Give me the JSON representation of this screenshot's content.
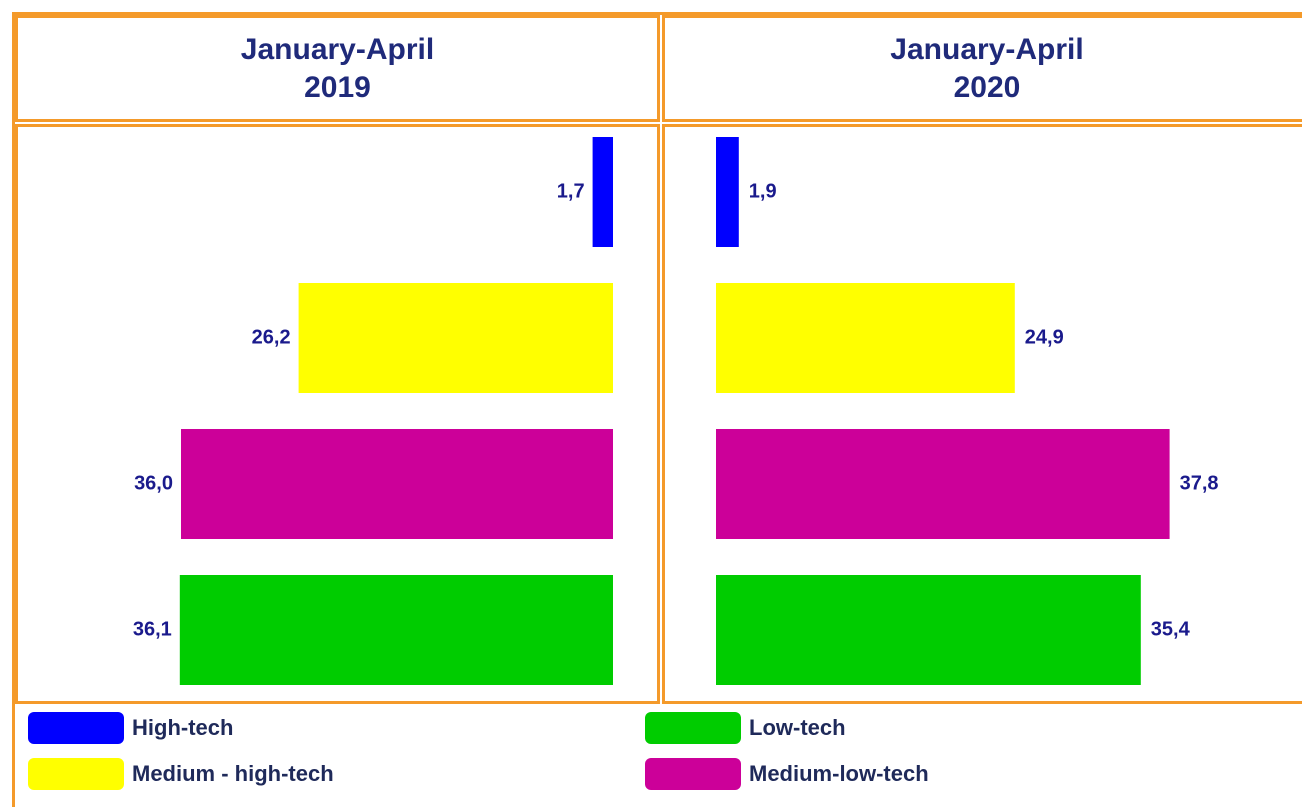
{
  "chart_data": [
    {
      "type": "barh",
      "title": "January-April 2019",
      "x_reversed": true,
      "categories": [
        "High-tech",
        "Medium - high-tech",
        "Medium-low-tech",
        "Low-tech"
      ],
      "colors": [
        "#0000ff",
        "#ffff00",
        "#cc0099",
        "#00cc00"
      ],
      "values": [
        1.7,
        26.2,
        36.0,
        36.1
      ],
      "value_labels": [
        "1,7",
        "26,2",
        "36,0",
        "36,1"
      ]
    },
    {
      "type": "barh",
      "title": "January-April 2020",
      "x_reversed": false,
      "categories": [
        "High-tech",
        "Medium - high-tech",
        "Medium-low-tech",
        "Low-tech"
      ],
      "colors": [
        "#0000ff",
        "#ffff00",
        "#cc0099",
        "#00cc00"
      ],
      "values": [
        1.9,
        24.9,
        37.8,
        35.4
      ],
      "value_labels": [
        "1,9",
        "24,9",
        "37,8",
        "35,4"
      ]
    }
  ]
}
